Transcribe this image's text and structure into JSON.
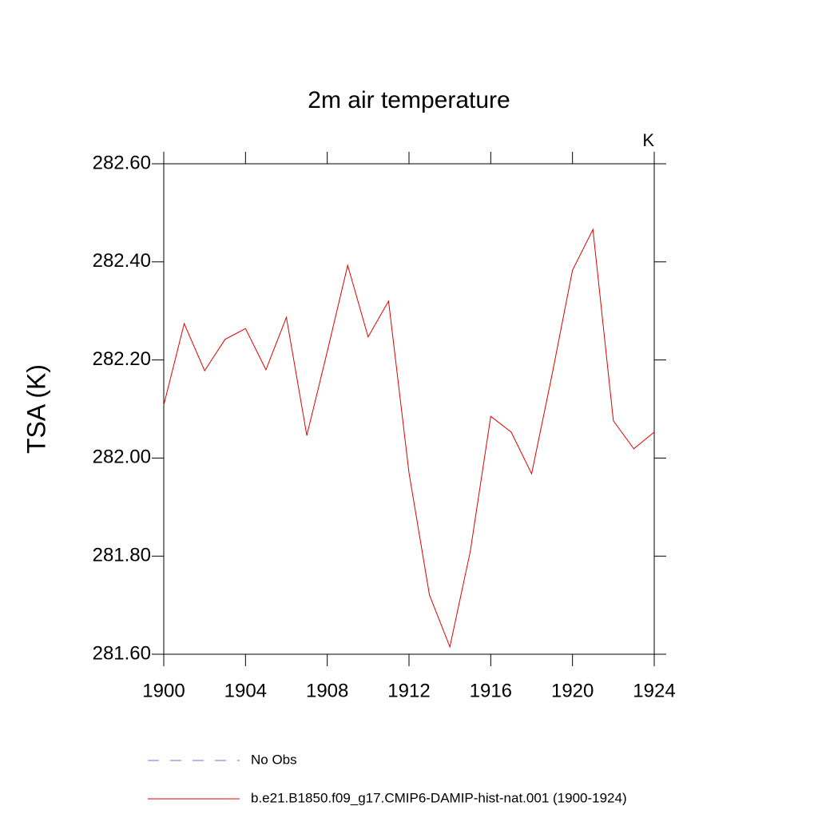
{
  "chart_data": {
    "type": "line",
    "title": "2m air temperature",
    "units": "K",
    "y_label": "TSA  (K)",
    "x": [
      1900,
      1901,
      1902,
      1903,
      1904,
      1905,
      1906,
      1907,
      1908,
      1909,
      1910,
      1911,
      1912,
      1913,
      1914,
      1915,
      1916,
      1917,
      1918,
      1919,
      1920,
      1921,
      1922,
      1923,
      1924
    ],
    "series": [
      {
        "name": "No Obs",
        "color": "#7070c8",
        "dashed": true,
        "values": [
          null,
          null,
          null,
          null,
          null,
          null,
          null,
          null,
          null,
          null,
          null,
          null,
          null,
          null,
          null,
          null,
          null,
          null,
          null,
          null,
          null,
          null,
          null,
          null,
          null
        ]
      },
      {
        "name": "b.e21.B1850.f09_g17.CMIP6-DAMIP-hist-nat.001 (1900-1924)",
        "color": "#e00000",
        "dashed": false,
        "values": [
          282.108,
          282.274,
          282.178,
          282.242,
          282.264,
          282.18,
          282.287,
          282.046,
          282.217,
          282.393,
          282.247,
          282.32,
          281.97,
          281.721,
          281.615,
          281.81,
          282.085,
          282.053,
          281.968,
          282.17,
          282.383,
          282.466,
          282.076,
          282.019,
          282.053
        ]
      }
    ],
    "xlim": [
      1900,
      1924
    ],
    "xticks": [
      1900,
      1904,
      1908,
      1912,
      1916,
      1920,
      1924
    ],
    "ylim": [
      281.6,
      282.6
    ],
    "yticks": [
      {
        "value": 281.6,
        "label": "281.60"
      },
      {
        "value": 281.8,
        "label": "281.80"
      },
      {
        "value": 282.0,
        "label": "282.00"
      },
      {
        "value": 282.2,
        "label": "282.20"
      },
      {
        "value": 282.4,
        "label": "282.40"
      },
      {
        "value": 282.6,
        "label": "282.60"
      }
    ],
    "grid": false
  }
}
